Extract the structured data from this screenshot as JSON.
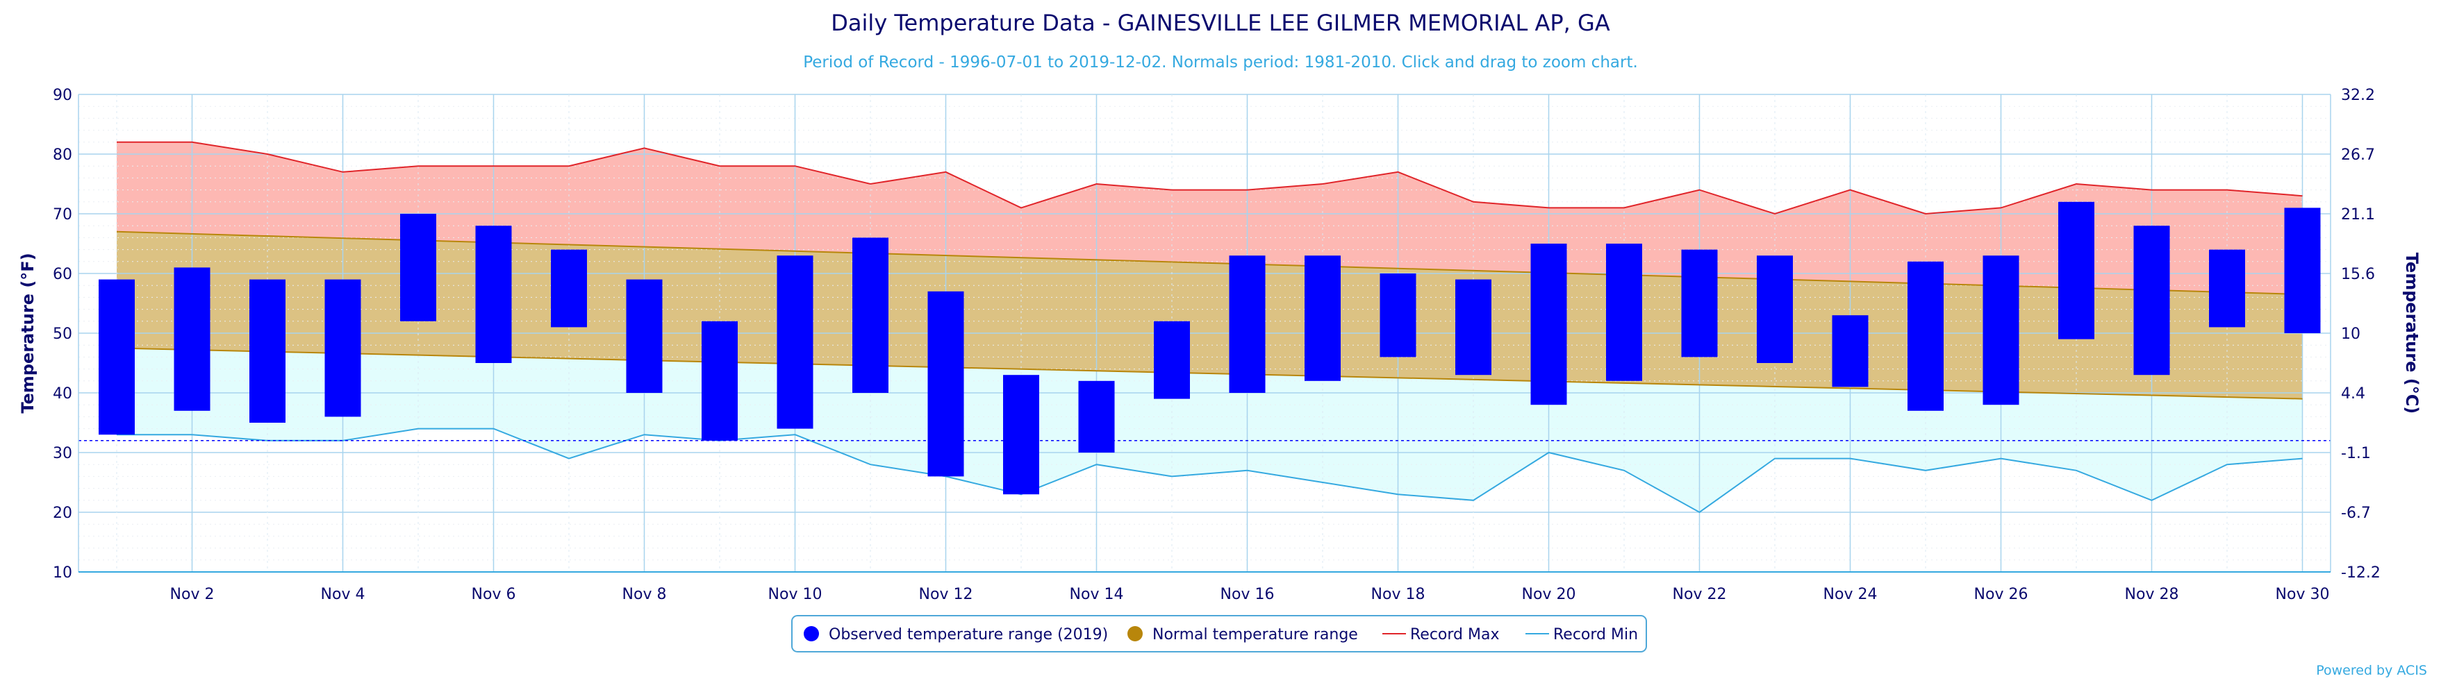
{
  "chart_data": {
    "type": "bar",
    "title": "Daily Temperature Data - GAINESVILLE LEE GILMER MEMORIAL AP, GA",
    "subtitle": "Period of Record - 1996-07-01 to 2019-12-02. Normals period: 1981-2010. Click and drag to zoom chart.",
    "ylabel": "Temperature (°F)",
    "ylabel_right": "Temperature (°C)",
    "ylim": [
      10,
      90
    ],
    "yticks": [
      "10",
      "20",
      "30",
      "40",
      "50",
      "60",
      "70",
      "80",
      "90"
    ],
    "yticks_right": [
      "-12.2",
      "-6.7",
      "-1.1",
      "4.4",
      "10",
      "15.6",
      "21.1",
      "26.7",
      "32.2"
    ],
    "freezing_line": 32,
    "x_days": [
      1,
      2,
      3,
      4,
      5,
      6,
      7,
      8,
      9,
      10,
      11,
      12,
      13,
      14,
      15,
      16,
      17,
      18,
      19,
      20,
      21,
      22,
      23,
      24,
      25,
      26,
      27,
      28,
      29,
      30
    ],
    "xtick_labels": [
      "Nov 2",
      "Nov 4",
      "Nov 6",
      "Nov 8",
      "Nov 10",
      "Nov 12",
      "Nov 14",
      "Nov 16",
      "Nov 18",
      "Nov 20",
      "Nov 22",
      "Nov 24",
      "Nov 26",
      "Nov 28",
      "Nov 30"
    ],
    "xtick_days": [
      2,
      4,
      6,
      8,
      10,
      12,
      14,
      16,
      18,
      20,
      22,
      24,
      26,
      28,
      30
    ],
    "observed_low": [
      33,
      37,
      35,
      36,
      52,
      45,
      51,
      40,
      32,
      34,
      40,
      26,
      23,
      30,
      39,
      40,
      42,
      46,
      43,
      38,
      42,
      46,
      45,
      41,
      37,
      38,
      49,
      43,
      51,
      50
    ],
    "observed_high": [
      59,
      61,
      59,
      59,
      70,
      68,
      64,
      59,
      52,
      63,
      66,
      57,
      43,
      42,
      52,
      63,
      63,
      60,
      59,
      65,
      65,
      64,
      63,
      53,
      62,
      63,
      72,
      68,
      64,
      71
    ],
    "normal_high_start": 67,
    "normal_high_end": 56.5,
    "normal_low_start": 47.5,
    "normal_low_end": 39,
    "record_max": [
      82,
      82,
      80,
      77,
      78,
      78,
      78,
      81,
      78,
      78,
      75,
      77,
      71,
      75,
      74,
      74,
      75,
      77,
      72,
      71,
      71,
      74,
      70,
      74,
      70,
      71,
      75,
      74,
      74,
      73
    ],
    "record_min": [
      33,
      33,
      32,
      32,
      34,
      34,
      29,
      33,
      32,
      33,
      28,
      26,
      23,
      28,
      26,
      27,
      25,
      23,
      22,
      30,
      27,
      20,
      29,
      29,
      27,
      29,
      27,
      22,
      28,
      29
    ],
    "series": [
      {
        "name": "Observed temperature range (2019)",
        "color": "#0000ff"
      },
      {
        "name": "Normal temperature range",
        "color": "#b8860b"
      },
      {
        "name": "Record Max",
        "color": "#e0252a"
      },
      {
        "name": "Record Min",
        "color": "#35a9e0"
      }
    ],
    "colors": {
      "title": "#0a0a6e",
      "subtitle": "#35a9e0",
      "record_fill": "#fdb8b3",
      "normal_fill": "#dcc283",
      "recordmin_fill": "#e2fdfd",
      "grid": "#a8d4ee",
      "axis_text": "#0a0a6e"
    },
    "credit": "Powered by ACIS"
  }
}
